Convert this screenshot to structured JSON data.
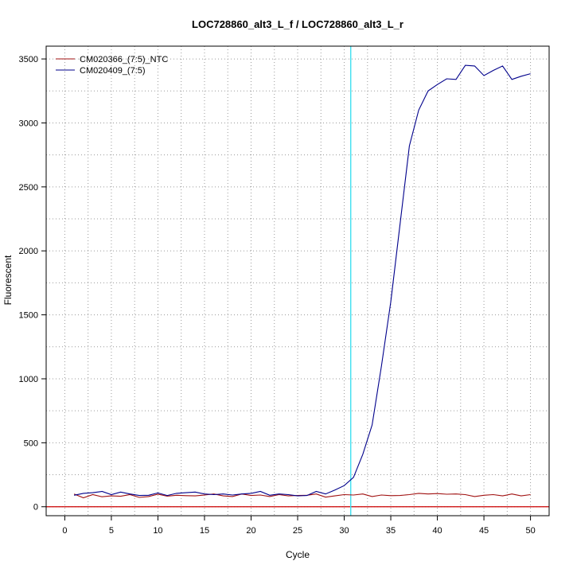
{
  "chart_data": {
    "type": "line",
    "title": "LOC728860_alt3_L_f / LOC728860_alt3_L_r",
    "xlabel": "Cycle",
    "ylabel": "Fluorescent",
    "xlim": [
      -2,
      52
    ],
    "ylim": [
      -70,
      3600
    ],
    "x_ticks": [
      0,
      5,
      10,
      15,
      20,
      25,
      30,
      35,
      40,
      45,
      50
    ],
    "y_ticks": [
      0,
      500,
      1000,
      1500,
      2000,
      2500,
      3000,
      3500
    ],
    "grid": true,
    "legend_position": "top-left",
    "threshold_line": {
      "x": 30.7,
      "color": "#40e0f0"
    },
    "baseline": {
      "y": 0,
      "color": "#cc0000"
    },
    "series": [
      {
        "name": "CM020366_(7:5)_NTC",
        "color": "#a01010",
        "x": [
          1,
          2,
          3,
          4,
          5,
          6,
          7,
          8,
          9,
          10,
          11,
          12,
          13,
          14,
          15,
          16,
          17,
          18,
          19,
          20,
          21,
          22,
          23,
          24,
          25,
          26,
          27,
          28,
          29,
          30,
          31,
          32,
          33,
          34,
          35,
          36,
          37,
          38,
          39,
          40,
          41,
          42,
          43,
          44,
          45,
          46,
          47,
          48,
          49,
          50
        ],
        "values": [
          100,
          70,
          95,
          78,
          85,
          82,
          95,
          73,
          80,
          98,
          83,
          90,
          87,
          85,
          92,
          100,
          85,
          80,
          100,
          88,
          92,
          80,
          95,
          85,
          88,
          90,
          100,
          75,
          85,
          95,
          92,
          100,
          80,
          92,
          87,
          88,
          95,
          105,
          100,
          103,
          98,
          100,
          95,
          80,
          90,
          95,
          85,
          100,
          85,
          95
        ]
      },
      {
        "name": "CM020409_(7:5)",
        "color": "#00008b",
        "x": [
          1,
          2,
          3,
          4,
          5,
          6,
          7,
          8,
          9,
          10,
          11,
          12,
          13,
          14,
          15,
          16,
          17,
          18,
          19,
          20,
          21,
          22,
          23,
          24,
          25,
          26,
          27,
          28,
          29,
          30,
          31,
          32,
          33,
          34,
          35,
          36,
          37,
          38,
          39,
          40,
          41,
          42,
          43,
          44,
          45,
          46,
          47,
          48,
          49,
          50
        ],
        "values": [
          90,
          105,
          110,
          120,
          95,
          115,
          100,
          88,
          90,
          108,
          88,
          105,
          110,
          115,
          100,
          95,
          100,
          92,
          100,
          105,
          120,
          90,
          100,
          95,
          85,
          88,
          120,
          100,
          130,
          165,
          230,
          410,
          640,
          1100,
          1600,
          2210,
          2820,
          3100,
          3250,
          3300,
          3345,
          3340,
          3450,
          3445,
          3370,
          3410,
          3445,
          3340,
          3365,
          3385
        ]
      }
    ]
  }
}
